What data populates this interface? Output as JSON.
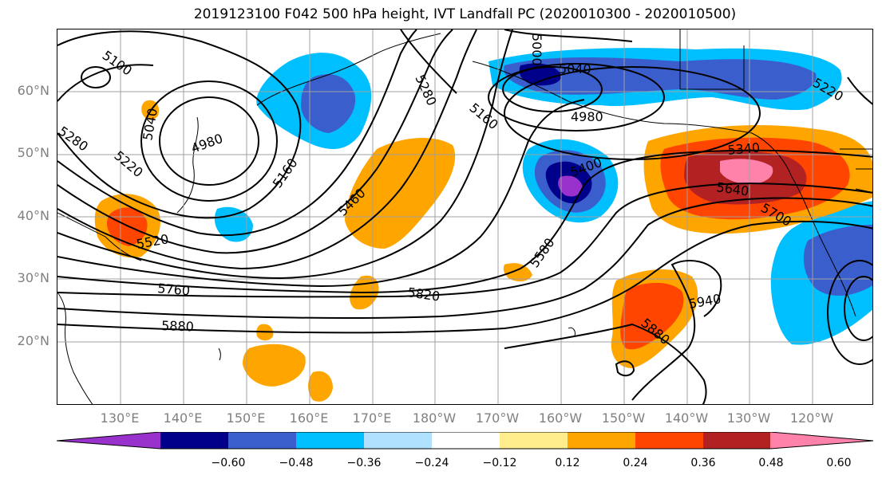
{
  "title": "2019123100 F042 500 hPa height, IVT Landfall PC (2020010300 - 2020010500)",
  "lat_labels": [
    "60°N",
    "50°N",
    "40°N",
    "30°N",
    "20°N"
  ],
  "lon_labels": [
    "130°E",
    "140°E",
    "150°E",
    "160°E",
    "170°E",
    "180°W",
    "170°W",
    "160°W",
    "150°W",
    "140°W",
    "130°W",
    "120°W"
  ],
  "contour_labels": [
    "5100",
    "5040",
    "4980",
    "5280",
    "5220",
    "5160",
    "5460",
    "5520",
    "5760",
    "5880",
    "5820",
    "5040",
    "4980",
    "5160",
    "5400",
    "5580",
    "5340",
    "5640",
    "5700",
    "5940",
    "5880",
    "5220",
    "5280",
    "5000"
  ],
  "colorbar": {
    "ticks": [
      "−0.60",
      "−0.48",
      "−0.36",
      "−0.24",
      "−0.12",
      "0.12",
      "0.24",
      "0.36",
      "0.48",
      "0.60"
    ],
    "colors": [
      "#9932cc",
      "#00008b",
      "#3a5fcd",
      "#00bfff",
      "#b0e2ff",
      "#ffffff",
      "#ffec8b",
      "#ffa500",
      "#ff4500",
      "#b22222",
      "#ff82ab"
    ]
  }
}
